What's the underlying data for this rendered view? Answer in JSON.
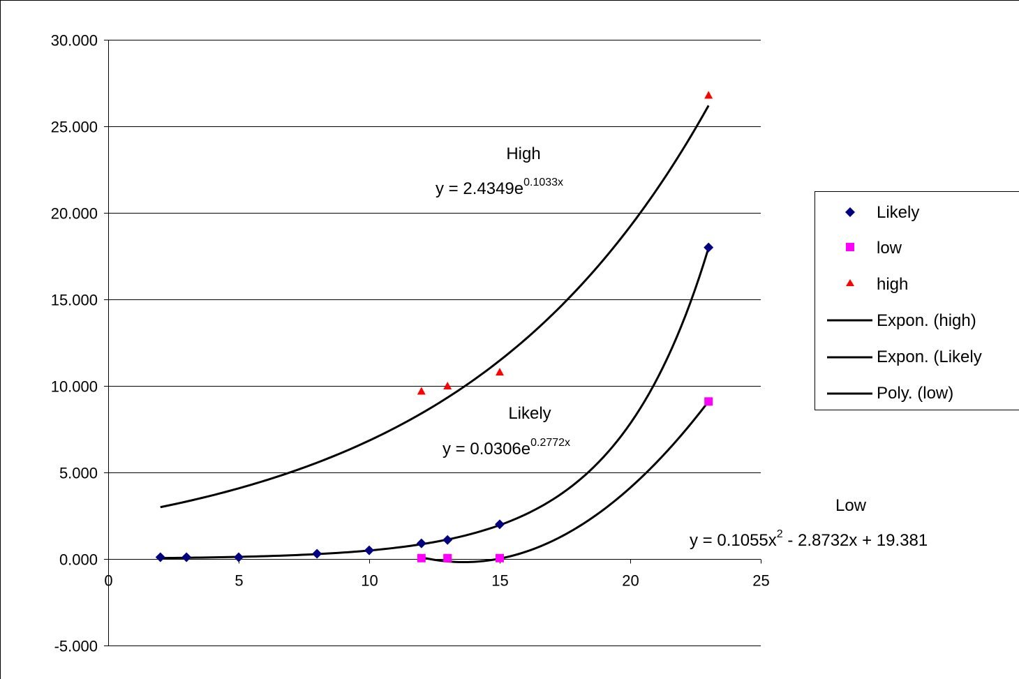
{
  "chart_data": {
    "type": "scatter",
    "title": "",
    "xlabel": "",
    "ylabel": "",
    "xlim": [
      0,
      25
    ],
    "ylim": [
      -5,
      30
    ],
    "x_ticks": [
      "0",
      "5",
      "10",
      "15",
      "20",
      "25"
    ],
    "y_ticks": [
      "-5.000",
      "0.000",
      "5.000",
      "10.000",
      "15.000",
      "20.000",
      "25.000",
      "30.000"
    ],
    "grid": "horizontal major gridlines",
    "legend_position": "right",
    "series": [
      {
        "name": "Likely",
        "marker": "diamond",
        "color": "#000080",
        "points": [
          [
            2,
            0.1
          ],
          [
            3,
            0.1
          ],
          [
            5,
            0.1
          ],
          [
            8,
            0.3
          ],
          [
            10,
            0.5
          ],
          [
            12,
            0.9
          ],
          [
            13,
            1.1
          ],
          [
            15,
            2.0
          ],
          [
            23,
            18.0
          ]
        ]
      },
      {
        "name": "low",
        "marker": "square",
        "color": "#ff00ff",
        "points": [
          [
            12,
            0.05
          ],
          [
            13,
            0.05
          ],
          [
            15,
            0.05
          ],
          [
            23,
            9.1
          ]
        ]
      },
      {
        "name": "high",
        "marker": "triangle",
        "color": "#ff0000",
        "points": [
          [
            12,
            9.7
          ],
          [
            13,
            10.0
          ],
          [
            15,
            10.8
          ],
          [
            23,
            26.8
          ]
        ]
      }
    ],
    "trendlines": [
      {
        "name": "Expon. (high)",
        "type": "exponential",
        "a": 2.4349,
        "b": 0.1033,
        "x_range": [
          2,
          23
        ],
        "color": "#000000"
      },
      {
        "name": "Expon. (Likely",
        "type": "exponential",
        "a": 0.0306,
        "b": 0.2772,
        "x_range": [
          2,
          23
        ],
        "color": "#000000"
      },
      {
        "name": "Poly. (low)",
        "type": "polynomial",
        "coefficients": [
          0.1055,
          -2.8732,
          19.381
        ],
        "x_range": [
          12,
          23
        ],
        "color": "#000000"
      }
    ],
    "annotations": [
      {
        "label": "High",
        "equation_base": "y = 2.4349e",
        "equation_exp": "0.1033x"
      },
      {
        "label": "Likely",
        "equation_base": "y = 0.0306e",
        "equation_exp": "0.2772x"
      },
      {
        "label": "Low",
        "equation_base": "y = 0.1055x",
        "equation_exp": "2",
        "equation_rest": " - 2.8732x + 19.381"
      }
    ]
  }
}
